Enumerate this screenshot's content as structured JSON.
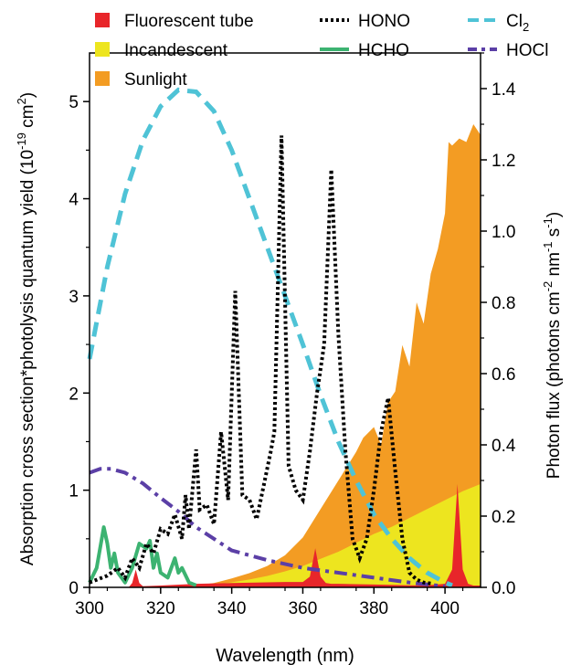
{
  "chart_data": {
    "type": "area+line",
    "x_axis": {
      "label": "Wavelength (nm)",
      "range": [
        300,
        410
      ],
      "ticks": [
        300,
        320,
        340,
        360,
        380,
        400
      ]
    },
    "y_left": {
      "label_main": "Absorption cross section*photolysis quantum yield (10",
      "label_exp": "-19",
      "label_unit": " cm",
      "label_unit_exp": "2",
      "label_close": ")",
      "range": [
        0,
        5.5
      ],
      "ticks": [
        0,
        1,
        2,
        3,
        4,
        5
      ]
    },
    "y_right": {
      "label_main": "Photon flux (photons cm",
      "label_exp1": "-2",
      "label_mid": " nm",
      "label_exp2": "-1",
      "label_s": " s",
      "label_exp3": "-1",
      "label_close": ")",
      "range": [
        0,
        1.5
      ],
      "ticks": [
        "0.0",
        "0.2",
        "0.4",
        "0.6",
        "0.8",
        "1.0",
        "1.2",
        "1.4"
      ]
    },
    "legend": [
      {
        "name": "Fluorescent tube",
        "kind": "patch",
        "color": "#e8262a"
      },
      {
        "name": "HONO",
        "kind": "dotted",
        "color": "#000000"
      },
      {
        "name": "Cl",
        "sub": "2",
        "kind": "dashed",
        "color": "#4fc3d6"
      },
      {
        "name": "Incandescent",
        "kind": "patch",
        "color": "#ede51f"
      },
      {
        "name": "HCHO",
        "kind": "solid",
        "color": "#3cb371"
      },
      {
        "name": "HOCl",
        "kind": "dashdot",
        "color": "#5b3fa6"
      },
      {
        "name": "Sunlight",
        "kind": "patch",
        "color": "#f39c23"
      }
    ],
    "colors": {
      "sunlight": "#f39c23",
      "incandescent": "#ede51f",
      "fluorescent": "#e8262a",
      "hono": "#000000",
      "hcho": "#3cb371",
      "cl2": "#4fc3d6",
      "hocl": "#5b3fa6"
    },
    "sunlight_axis": "right",
    "sunlight": {
      "x": [
        300,
        325,
        330,
        335,
        340,
        345,
        350,
        355,
        360,
        365,
        370,
        375,
        377,
        380,
        382,
        384,
        386,
        388,
        390,
        392,
        394,
        396,
        398,
        400,
        401,
        402,
        404,
        406,
        408,
        410
      ],
      "y": [
        0,
        0,
        0.005,
        0.012,
        0.025,
        0.04,
        0.06,
        0.09,
        0.14,
        0.22,
        0.3,
        0.38,
        0.42,
        0.45,
        0.4,
        0.52,
        0.55,
        0.68,
        0.62,
        0.8,
        0.74,
        0.88,
        0.95,
        1.05,
        1.25,
        1.24,
        1.26,
        1.25,
        1.3,
        1.27
      ]
    },
    "incandescent_axis": "right",
    "incandescent": {
      "x": [
        300,
        325,
        330,
        335,
        340,
        345,
        350,
        355,
        360,
        365,
        370,
        375,
        380,
        385,
        390,
        395,
        400,
        405,
        410
      ],
      "y": [
        0,
        0.002,
        0.004,
        0.008,
        0.014,
        0.022,
        0.032,
        0.045,
        0.06,
        0.08,
        0.1,
        0.125,
        0.15,
        0.17,
        0.195,
        0.22,
        0.245,
        0.27,
        0.29
      ]
    },
    "fluorescent_axis": "right",
    "fluorescent": {
      "x": [
        300,
        311,
        312,
        313,
        314,
        315,
        320,
        330,
        340,
        350,
        355,
        360,
        362,
        363.5,
        365,
        366.5,
        368,
        370,
        380,
        390,
        395,
        400,
        402,
        403.5,
        405,
        406.5,
        408,
        410
      ],
      "y": [
        0,
        0,
        0.012,
        0.05,
        0.012,
        0.003,
        0.005,
        0.01,
        0.012,
        0.014,
        0.015,
        0.015,
        0.03,
        0.11,
        0.03,
        0.012,
        0.01,
        0.01,
        0.008,
        0.006,
        0.006,
        0.01,
        0.05,
        0.29,
        0.05,
        0.01,
        0.005,
        0.005
      ]
    },
    "hono": {
      "x": [
        300,
        305,
        308,
        310,
        312,
        314,
        316,
        318,
        320,
        322,
        324,
        326,
        327,
        328,
        330,
        331,
        333,
        335,
        337,
        339,
        341,
        343,
        345,
        347,
        349,
        351,
        352,
        354,
        356,
        358,
        360,
        362,
        364,
        366,
        368,
        370,
        372,
        374,
        376,
        378,
        380,
        382,
        384,
        386,
        388,
        390,
        392,
        394,
        396
      ],
      "y": [
        0.05,
        0.12,
        0.2,
        0.1,
        0.3,
        0.2,
        0.45,
        0.35,
        0.6,
        0.55,
        0.75,
        0.5,
        0.95,
        0.6,
        1.42,
        0.8,
        0.85,
        0.65,
        1.6,
        0.9,
        3.05,
        0.95,
        0.9,
        0.7,
        1.05,
        1.4,
        1.6,
        4.65,
        1.25,
        1.0,
        0.9,
        1.4,
        2.0,
        2.5,
        4.3,
        2.6,
        1.4,
        0.5,
        0.3,
        0.5,
        1.0,
        1.6,
        1.95,
        1.2,
        0.5,
        0.15,
        0.08,
        0.05,
        0.04
      ]
    },
    "hcho": {
      "x": [
        300,
        302,
        304,
        305,
        306,
        307,
        308,
        310,
        312,
        314,
        316,
        317,
        318,
        319,
        320,
        322,
        324,
        325,
        326,
        328,
        330
      ],
      "y": [
        0.05,
        0.2,
        0.62,
        0.45,
        0.2,
        0.35,
        0.15,
        0.05,
        0.2,
        0.45,
        0.4,
        0.48,
        0.2,
        0.35,
        0.15,
        0.1,
        0.3,
        0.15,
        0.2,
        0.05,
        0.02
      ]
    },
    "cl2": {
      "x": [
        300,
        305,
        310,
        315,
        320,
        325,
        330,
        335,
        340,
        345,
        350,
        355,
        360,
        365,
        370,
        375,
        380,
        385,
        390,
        395,
        400,
        402
      ],
      "y": [
        2.35,
        3.3,
        4.05,
        4.6,
        4.95,
        5.12,
        5.1,
        4.9,
        4.5,
        4.0,
        3.5,
        3.0,
        2.5,
        1.98,
        1.5,
        1.1,
        0.75,
        0.5,
        0.3,
        0.15,
        0.05,
        0.02
      ]
    },
    "hocl": {
      "x": [
        300,
        303,
        306,
        310,
        315,
        320,
        325,
        330,
        340,
        350,
        360,
        370,
        380,
        390,
        395,
        400
      ],
      "y": [
        1.18,
        1.22,
        1.22,
        1.18,
        1.07,
        0.92,
        0.78,
        0.62,
        0.38,
        0.28,
        0.2,
        0.15,
        0.1,
        0.05,
        0.03,
        0.01
      ]
    }
  }
}
